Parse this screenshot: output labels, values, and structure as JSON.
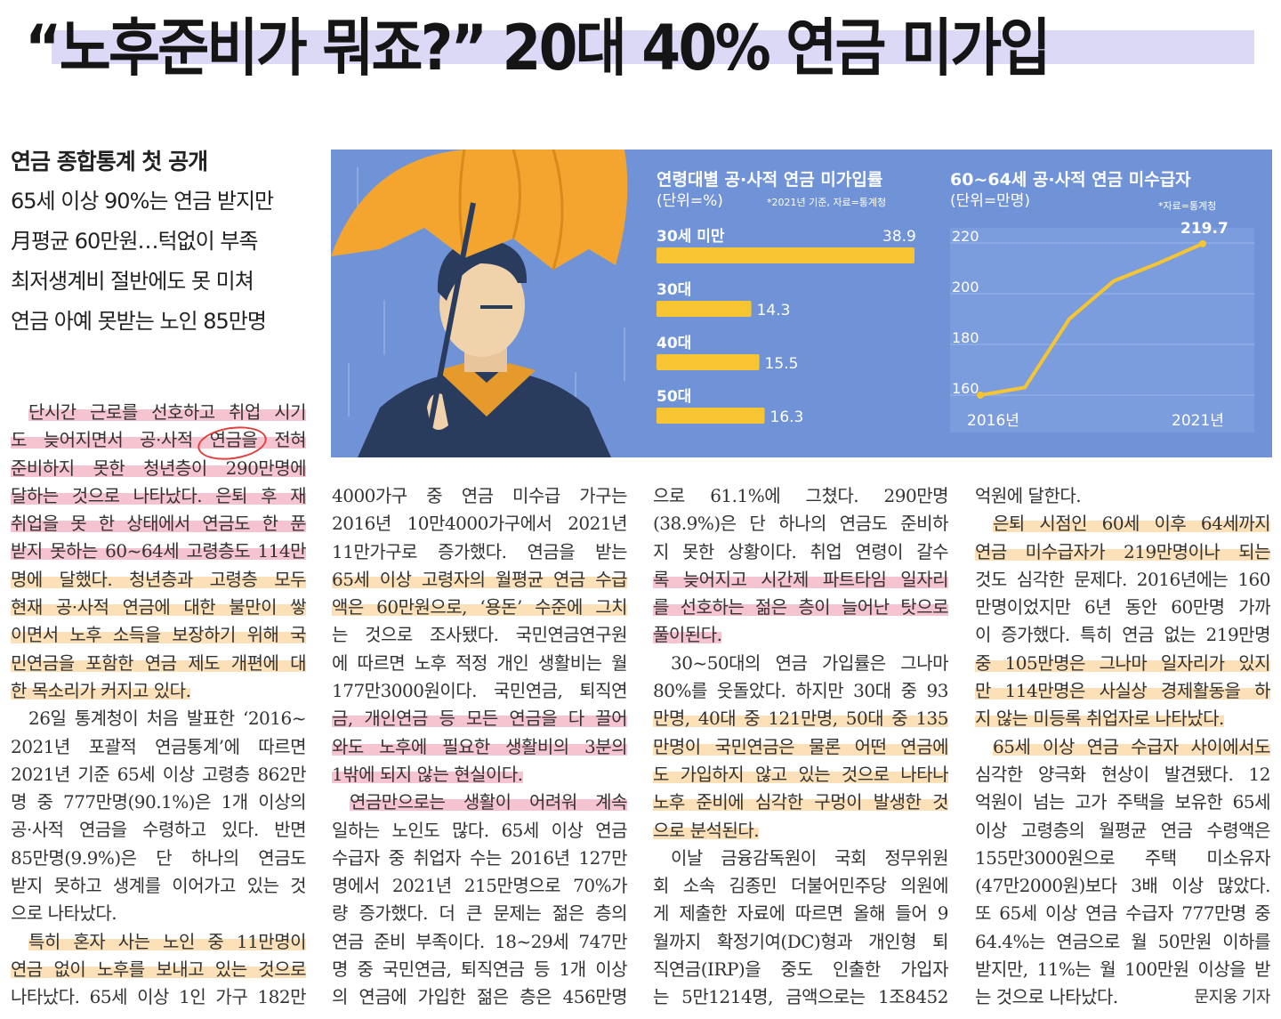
{
  "headline": "“노후준비가 뭐죠?” 20대 40% 연금 미가입",
  "subheads": {
    "main": "연금 종합통계 첫 공개",
    "lines": [
      "65세 이상 90%는 연금 받지만",
      "月평균 60만원…턱없이 부족",
      "최저생계비 절반에도 못 미쳐",
      "연금 아예 못받는 노인 85만명"
    ]
  },
  "colors": {
    "highlight_pink": "#f6c3d0",
    "highlight_yellow": "#fbe0b8",
    "bar": "#f7c531",
    "chart_bg": "#6f93d6",
    "umbrella": "#f3a530"
  },
  "chart_data": [
    {
      "type": "bar",
      "title": "연령대별 공·사적 연금 미가입률",
      "unit": "(단위=%)",
      "source": "*2021년 기준, 자료=통계청",
      "categories": [
        "30세 미만",
        "30대",
        "40대",
        "50대"
      ],
      "values": [
        38.9,
        14.3,
        15.5,
        16.3
      ],
      "value_labels": [
        "38.9",
        "14.3",
        "15.5",
        "16.3"
      ],
      "orientation": "horizontal"
    },
    {
      "type": "line",
      "title": "60~64세 공·사적 연금 미수급자",
      "unit": "(단위=만명)",
      "source": "*자료=통계청",
      "x": [
        2016,
        2017,
        2018,
        2019,
        2020,
        2021
      ],
      "y": [
        160,
        163,
        190,
        205,
        212,
        219.7
      ],
      "x_tick_labels": [
        "2016년",
        "2021년"
      ],
      "y_ticks": [
        "220",
        "200",
        "180",
        "160"
      ],
      "ylim": [
        160,
        220
      ],
      "end_label": "219.7",
      "grid": true
    }
  ],
  "body": {
    "col1": [
      {
        "t": "단시간 근로를 선호하고 취업 시기",
        "h": "p",
        "ind": true
      },
      {
        "t": "도 늦어지면서 공·사적 연금을 전혀",
        "h": "p"
      },
      {
        "t": "준비하지 못한 청년층이 290만명에",
        "h": "p"
      },
      {
        "t": "달하는 것으로 나타났다. 은퇴 후 재",
        "h": "p"
      },
      {
        "t": "취업을 못 한 상태에서 연금도 한 푼",
        "h": "p"
      },
      {
        "t": "받지 못하는 60~64세 고령층도 114만",
        "h": "p"
      },
      {
        "t": "명에 달했다. 청년층과 고령층 모두",
        "h": "y"
      },
      {
        "t": "현재 공·사적 연금에 대한 불만이 쌓",
        "h": "y"
      },
      {
        "t": "이면서 노후 소득을 보장하기 위해 국",
        "h": "y"
      },
      {
        "t": "민연금을 포함한 연금 제도 개편에 대",
        "h": "y"
      },
      {
        "t": "한 목소리가 커지고 있다.",
        "h": "y",
        "last": true
      },
      {
        "t": "26일 통계청이 처음 발표한 ‘2016~",
        "ind": true
      },
      {
        "t": "2021년 포괄적 연금통계’에 따르면"
      },
      {
        "t": "2021년 기준 65세 이상 고령층 862만"
      },
      {
        "t": "명 중 777만명(90.1%)은 1개 이상의"
      },
      {
        "t": "공·사적 연금을 수령하고 있다. 반면"
      },
      {
        "t": "85만명(9.9%)은 단 하나의 연금도"
      },
      {
        "t": "받지 못하고 생계를 이어가고 있는 것"
      },
      {
        "t": "으로 나타났다.",
        "last": true
      },
      {
        "t": "특히 혼자 사는 노인 중 11만명이",
        "h": "y",
        "ind": true
      },
      {
        "t": "연금 없이 노후를 보내고 있는 것으로",
        "h": "y"
      },
      {
        "t": "나타났다. 65세 이상 1인 가구 182만"
      }
    ],
    "col2": [
      {
        "t": "4000가구 중 연금 미수급 가구는"
      },
      {
        "t": "2016년 10만4000가구에서 2021년"
      },
      {
        "t": "11만가구로 증가했다. 연금을 받는"
      },
      {
        "t": "65세 이상 고령자의 월평균 연금 수급",
        "h": "y"
      },
      {
        "t": "액은 60만원으로, ‘용돈’ 수준에 그치",
        "h": "y"
      },
      {
        "t": "는 것으로 조사됐다. 국민연금연구원"
      },
      {
        "t": "에 따르면 노후 적정 개인 생활비는 월"
      },
      {
        "t": "177만3000원이다. 국민연금, 퇴직연"
      },
      {
        "t": "금, 개인연금 등 모든 연금을 다 끌어",
        "h": "p"
      },
      {
        "t": "와도 노후에 필요한 생활비의 3분의",
        "h": "p"
      },
      {
        "t": "1밖에 되지 않는 현실이다.",
        "h": "p",
        "last": true
      },
      {
        "t": "연금만으로는 생활이 어려워 계속",
        "h": "p",
        "ind": true
      },
      {
        "t": "일하는 노인도 많다. 65세 이상 연금"
      },
      {
        "t": "수급자 중 취업자 수는 2016년 127만"
      },
      {
        "t": "명에서 2021년 215만명으로 70%가"
      },
      {
        "t": "량 증가했다. 더 큰 문제는 젊은 층의"
      },
      {
        "t": "연금 준비 부족이다. 18~29세 747만"
      },
      {
        "t": "명 중 국민연금, 퇴직연금 등 1개 이상"
      },
      {
        "t": "의 연금에 가입한 젊은 층은 456만명"
      }
    ],
    "col3": [
      {
        "t": "으로 61.1%에 그쳤다. 290만명"
      },
      {
        "t": "(38.9%)은 단 하나의 연금도 준비하"
      },
      {
        "t": "지 못한 상황이다. 취업 연령이 갈수"
      },
      {
        "t": "록 늦어지고 시간제 파트타임 일자리",
        "h": "p"
      },
      {
        "t": "를 선호하는 젊은 층이 늘어난 탓으로",
        "h": "p"
      },
      {
        "t": "풀이된다.",
        "h": "p",
        "last": true
      },
      {
        "t": "30~50대의 연금 가입률은 그나마",
        "ind": true
      },
      {
        "t": "80%를 웃돌았다. 하지만 30대 중 93"
      },
      {
        "t": "만명, 40대 중 121만명, 50대 중 135",
        "h": "y"
      },
      {
        "t": "만명이 국민연금은 물론 어떤 연금에",
        "h": "y"
      },
      {
        "t": "도 가입하지 않고 있는 것으로 나타나",
        "h": "y"
      },
      {
        "t": "노후 준비에 심각한 구멍이 발생한 것",
        "h": "y"
      },
      {
        "t": "으로 분석된다.",
        "h": "y",
        "last": true
      },
      {
        "t": "이날 금융감독원이 국회 정무위원",
        "ind": true
      },
      {
        "t": "회 소속 김종민 더불어민주당 의원에"
      },
      {
        "t": "게 제출한 자료에 따르면 올해 들어 9"
      },
      {
        "t": "월까지 확정기여(DC)형과 개인형 퇴"
      },
      {
        "t": "직연금(IRP)을 중도 인출한 가입자"
      },
      {
        "t": "는 5만1214명, 금액으로는 1조8452"
      }
    ],
    "col4": [
      {
        "t": "억원에 달한다.",
        "last": true
      },
      {
        "t": "은퇴 시점인 60세 이후 64세까지",
        "h": "y",
        "ind": true
      },
      {
        "t": "연금 미수급자가 219만명이나 되는",
        "h": "y"
      },
      {
        "t": "것도 심각한 문제다. 2016년에는 160"
      },
      {
        "t": "만명이었지만 6년 동안 60만명 가까"
      },
      {
        "t": "이 증가했다. 특히 연금 없는 219만명"
      },
      {
        "t": "중 105만명은 그나마 일자리가 있지",
        "h": "y"
      },
      {
        "t": "만 114만명은 사실상 경제활동을 하",
        "h": "y"
      },
      {
        "t": "지 않는 미등록 취업자로 나타났다.",
        "h": "y",
        "last": true
      },
      {
        "t": "65세 이상 연금 수급자 사이에서도",
        "h": "y",
        "ind": true
      },
      {
        "t": "심각한 양극화 현상이 발견됐다. 12"
      },
      {
        "t": "억원이 넘는 고가 주택을 보유한 65세"
      },
      {
        "t": "이상 고령층의 월평균 연금 수령액은"
      },
      {
        "t": "155만3000원으로 주택 미소유자"
      },
      {
        "t": "(47만2000원)보다 3배 이상 많았다."
      },
      {
        "t": "또 65세 이상 연금 수급자 777만명 중"
      },
      {
        "t": "64.4%는 연금으로 월 50만원 이하를"
      },
      {
        "t": "받지만, 11%는 월 100만원 이상을 받"
      },
      {
        "t": "는 것으로 나타났다.",
        "last": true
      }
    ],
    "byline": "문지웅 기자"
  }
}
